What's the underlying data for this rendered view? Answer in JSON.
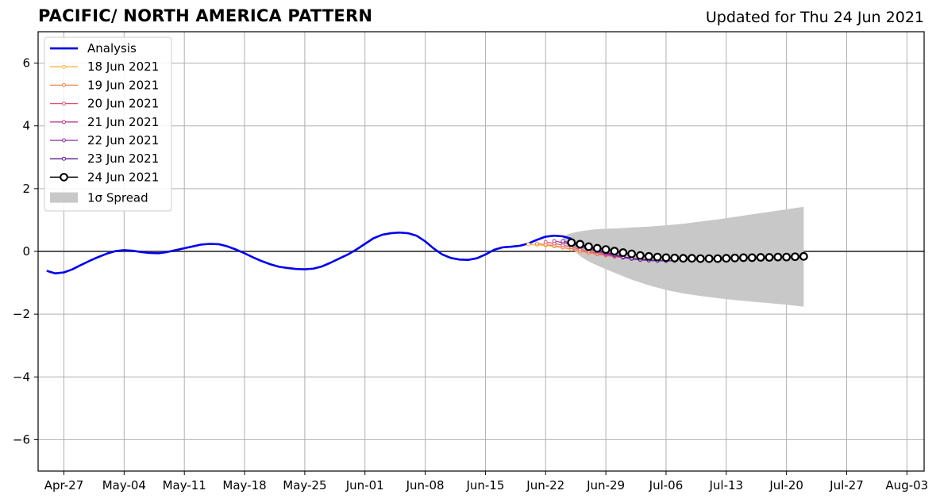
{
  "header": {
    "title": "PACIFIC/ NORTH AMERICA PATTERN",
    "updated": "Updated for Thu 24 Jun 2021"
  },
  "chart_data": {
    "type": "line",
    "title": "PACIFIC/ NORTH AMERICA PATTERN",
    "subtitle": "Updated for Thu 24 Jun 2021",
    "xlabel": "",
    "ylabel": "",
    "xlim": [
      "2021-04-24",
      "2021-08-05"
    ],
    "ylim": [
      -7,
      7
    ],
    "grid": true,
    "legend_position": "top-left",
    "x_tick_labels": [
      "Apr-27",
      "May-04",
      "May-11",
      "May-18",
      "May-25",
      "Jun-01",
      "Jun-08",
      "Jun-15",
      "Jun-22",
      "Jun-29",
      "Jul-06",
      "Jul-13",
      "Jul-20",
      "Jul-27",
      "Aug-03"
    ],
    "x_tick_dates": [
      "2021-04-27",
      "2021-05-04",
      "2021-05-11",
      "2021-05-18",
      "2021-05-25",
      "2021-06-01",
      "2021-06-08",
      "2021-06-15",
      "2021-06-22",
      "2021-06-29",
      "2021-07-06",
      "2021-07-13",
      "2021-07-20",
      "2021-07-27",
      "2021-08-03"
    ],
    "y_ticks": [
      -6,
      -4,
      -2,
      0,
      2,
      4,
      6
    ],
    "y_tick_labels": [
      "−6",
      "−4",
      "−2",
      "0",
      "2",
      "4",
      "6"
    ],
    "series": [
      {
        "name": "Analysis",
        "color": "#0000ee",
        "style": "analysis",
        "points": [
          [
            "2021-04-25",
            -0.62
          ],
          [
            "2021-04-26",
            -0.7
          ],
          [
            "2021-04-27",
            -0.67
          ],
          [
            "2021-04-28",
            -0.57
          ],
          [
            "2021-04-29",
            -0.43
          ],
          [
            "2021-04-30",
            -0.3
          ],
          [
            "2021-05-01",
            -0.18
          ],
          [
            "2021-05-02",
            -0.07
          ],
          [
            "2021-05-03",
            0.01
          ],
          [
            "2021-05-04",
            0.04
          ],
          [
            "2021-05-05",
            0.02
          ],
          [
            "2021-05-06",
            -0.02
          ],
          [
            "2021-05-07",
            -0.05
          ],
          [
            "2021-05-08",
            -0.06
          ],
          [
            "2021-05-09",
            -0.02
          ],
          [
            "2021-05-10",
            0.04
          ],
          [
            "2021-05-11",
            0.1
          ],
          [
            "2021-05-12",
            0.16
          ],
          [
            "2021-05-13",
            0.22
          ],
          [
            "2021-05-14",
            0.24
          ],
          [
            "2021-05-15",
            0.23
          ],
          [
            "2021-05-16",
            0.16
          ],
          [
            "2021-05-17",
            0.06
          ],
          [
            "2021-05-18",
            -0.06
          ],
          [
            "2021-05-19",
            -0.19
          ],
          [
            "2021-05-20",
            -0.31
          ],
          [
            "2021-05-21",
            -0.41
          ],
          [
            "2021-05-22",
            -0.49
          ],
          [
            "2021-05-23",
            -0.53
          ],
          [
            "2021-05-24",
            -0.56
          ],
          [
            "2021-05-25",
            -0.57
          ],
          [
            "2021-05-26",
            -0.55
          ],
          [
            "2021-05-27",
            -0.48
          ],
          [
            "2021-05-28",
            -0.36
          ],
          [
            "2021-05-29",
            -0.23
          ],
          [
            "2021-05-30",
            -0.1
          ],
          [
            "2021-05-31",
            0.06
          ],
          [
            "2021-06-01",
            0.24
          ],
          [
            "2021-06-02",
            0.42
          ],
          [
            "2021-06-03",
            0.53
          ],
          [
            "2021-06-04",
            0.58
          ],
          [
            "2021-06-05",
            0.6
          ],
          [
            "2021-06-06",
            0.58
          ],
          [
            "2021-06-07",
            0.5
          ],
          [
            "2021-06-08",
            0.32
          ],
          [
            "2021-06-09",
            0.09
          ],
          [
            "2021-06-10",
            -0.1
          ],
          [
            "2021-06-11",
            -0.21
          ],
          [
            "2021-06-12",
            -0.26
          ],
          [
            "2021-06-13",
            -0.27
          ],
          [
            "2021-06-14",
            -0.22
          ],
          [
            "2021-06-15",
            -0.1
          ],
          [
            "2021-06-16",
            0.05
          ],
          [
            "2021-06-17",
            0.13
          ],
          [
            "2021-06-18",
            0.15
          ],
          [
            "2021-06-19",
            0.18
          ],
          [
            "2021-06-20",
            0.25
          ],
          [
            "2021-06-21",
            0.37
          ],
          [
            "2021-06-22",
            0.47
          ],
          [
            "2021-06-23",
            0.5
          ],
          [
            "2021-06-24",
            0.48
          ],
          [
            "2021-06-25",
            0.4
          ]
        ]
      },
      {
        "name": "18 Jun 2021",
        "color": "#fbb33a",
        "style": "forecast",
        "points": [
          [
            "2021-06-20",
            0.22
          ],
          [
            "2021-06-21",
            0.21
          ],
          [
            "2021-06-22",
            0.19
          ],
          [
            "2021-06-23",
            0.16
          ],
          [
            "2021-06-24",
            0.12
          ],
          [
            "2021-06-25",
            0.06
          ],
          [
            "2021-06-26",
            0.0
          ],
          [
            "2021-06-27",
            -0.05
          ],
          [
            "2021-06-28",
            -0.09
          ],
          [
            "2021-06-29",
            -0.12
          ],
          [
            "2021-06-30",
            -0.16
          ],
          [
            "2021-07-01",
            -0.19
          ],
          [
            "2021-07-02",
            -0.21
          ]
        ]
      },
      {
        "name": "19 Jun 2021",
        "color": "#f37e4a",
        "style": "forecast",
        "points": [
          [
            "2021-06-21",
            0.25
          ],
          [
            "2021-06-22",
            0.22
          ],
          [
            "2021-06-23",
            0.18
          ],
          [
            "2021-06-24",
            0.13
          ],
          [
            "2021-06-25",
            0.08
          ],
          [
            "2021-06-26",
            0.02
          ],
          [
            "2021-06-27",
            -0.04
          ],
          [
            "2021-06-28",
            -0.09
          ],
          [
            "2021-06-29",
            -0.13
          ],
          [
            "2021-06-30",
            -0.17
          ],
          [
            "2021-07-01",
            -0.2
          ],
          [
            "2021-07-02",
            -0.22
          ],
          [
            "2021-07-03",
            -0.24
          ]
        ]
      },
      {
        "name": "20 Jun 2021",
        "color": "#de5470",
        "style": "forecast",
        "points": [
          [
            "2021-06-22",
            0.3
          ],
          [
            "2021-06-23",
            0.25
          ],
          [
            "2021-06-24",
            0.2
          ],
          [
            "2021-06-25",
            0.14
          ],
          [
            "2021-06-26",
            0.07
          ],
          [
            "2021-06-27",
            0.0
          ],
          [
            "2021-06-28",
            -0.06
          ],
          [
            "2021-06-29",
            -0.11
          ],
          [
            "2021-06-30",
            -0.16
          ],
          [
            "2021-07-01",
            -0.2
          ],
          [
            "2021-07-02",
            -0.23
          ],
          [
            "2021-07-03",
            -0.25
          ],
          [
            "2021-07-04",
            -0.27
          ]
        ]
      },
      {
        "name": "21 Jun 2021",
        "color": "#b43e8f",
        "style": "forecast",
        "points": [
          [
            "2021-06-23",
            0.33
          ],
          [
            "2021-06-24",
            0.28
          ],
          [
            "2021-06-25",
            0.21
          ],
          [
            "2021-06-26",
            0.14
          ],
          [
            "2021-06-27",
            0.06
          ],
          [
            "2021-06-28",
            -0.01
          ],
          [
            "2021-06-29",
            -0.08
          ],
          [
            "2021-06-30",
            -0.14
          ],
          [
            "2021-07-01",
            -0.19
          ],
          [
            "2021-07-02",
            -0.23
          ],
          [
            "2021-07-03",
            -0.26
          ],
          [
            "2021-07-04",
            -0.28
          ],
          [
            "2021-07-05",
            -0.29
          ]
        ]
      },
      {
        "name": "22 Jun 2021",
        "color": "#8a2aa4",
        "style": "forecast",
        "points": [
          [
            "2021-06-24",
            0.33
          ],
          [
            "2021-06-25",
            0.26
          ],
          [
            "2021-06-26",
            0.18
          ],
          [
            "2021-06-27",
            0.1
          ],
          [
            "2021-06-28",
            0.02
          ],
          [
            "2021-06-29",
            -0.06
          ],
          [
            "2021-06-30",
            -0.13
          ],
          [
            "2021-07-01",
            -0.19
          ],
          [
            "2021-07-02",
            -0.24
          ],
          [
            "2021-07-03",
            -0.27
          ],
          [
            "2021-07-04",
            -0.29
          ],
          [
            "2021-07-05",
            -0.3
          ],
          [
            "2021-07-06",
            -0.3
          ]
        ]
      },
      {
        "name": "23 Jun 2021",
        "color": "#5a1a96",
        "style": "forecast",
        "points": [
          [
            "2021-06-25",
            0.3
          ],
          [
            "2021-06-26",
            0.22
          ],
          [
            "2021-06-27",
            0.13
          ],
          [
            "2021-06-28",
            0.05
          ],
          [
            "2021-06-29",
            -0.03
          ],
          [
            "2021-06-30",
            -0.1
          ],
          [
            "2021-07-01",
            -0.17
          ],
          [
            "2021-07-02",
            -0.22
          ],
          [
            "2021-07-03",
            -0.26
          ],
          [
            "2021-07-04",
            -0.28
          ],
          [
            "2021-07-05",
            -0.3
          ],
          [
            "2021-07-06",
            -0.3
          ],
          [
            "2021-07-07",
            -0.3
          ]
        ]
      },
      {
        "name": "24 Jun 2021",
        "color": "#000000",
        "style": "latest",
        "points": [
          [
            "2021-06-25",
            0.28
          ],
          [
            "2021-06-26",
            0.23
          ],
          [
            "2021-06-27",
            0.15
          ],
          [
            "2021-06-28",
            0.1
          ],
          [
            "2021-06-29",
            0.06
          ],
          [
            "2021-06-30",
            0.01
          ],
          [
            "2021-07-01",
            -0.04
          ],
          [
            "2021-07-02",
            -0.08
          ],
          [
            "2021-07-03",
            -0.13
          ],
          [
            "2021-07-04",
            -0.16
          ],
          [
            "2021-07-05",
            -0.18
          ],
          [
            "2021-07-06",
            -0.2
          ],
          [
            "2021-07-07",
            -0.21
          ],
          [
            "2021-07-08",
            -0.22
          ],
          [
            "2021-07-09",
            -0.22
          ],
          [
            "2021-07-10",
            -0.23
          ],
          [
            "2021-07-11",
            -0.23
          ],
          [
            "2021-07-12",
            -0.23
          ],
          [
            "2021-07-13",
            -0.22
          ],
          [
            "2021-07-14",
            -0.21
          ],
          [
            "2021-07-15",
            -0.2
          ],
          [
            "2021-07-16",
            -0.2
          ],
          [
            "2021-07-17",
            -0.19
          ],
          [
            "2021-07-18",
            -0.19
          ],
          [
            "2021-07-19",
            -0.18
          ],
          [
            "2021-07-20",
            -0.18
          ],
          [
            "2021-07-21",
            -0.17
          ],
          [
            "2021-07-22",
            -0.16
          ]
        ]
      }
    ],
    "spread": {
      "name": "1σ Spread",
      "color": "#c8c8c8",
      "upper": [
        [
          "2021-06-24",
          0.48
        ],
        [
          "2021-06-25",
          0.58
        ],
        [
          "2021-06-26",
          0.64
        ],
        [
          "2021-06-27",
          0.68
        ],
        [
          "2021-06-28",
          0.71
        ],
        [
          "2021-06-30",
          0.73
        ],
        [
          "2021-07-02",
          0.76
        ],
        [
          "2021-07-04",
          0.79
        ],
        [
          "2021-07-06",
          0.83
        ],
        [
          "2021-07-08",
          0.88
        ],
        [
          "2021-07-10",
          0.95
        ],
        [
          "2021-07-12",
          1.02
        ],
        [
          "2021-07-14",
          1.1
        ],
        [
          "2021-07-16",
          1.18
        ],
        [
          "2021-07-18",
          1.26
        ],
        [
          "2021-07-20",
          1.34
        ],
        [
          "2021-07-22",
          1.42
        ]
      ],
      "lower": [
        [
          "2021-06-24",
          0.3
        ],
        [
          "2021-06-25",
          0.1
        ],
        [
          "2021-06-26",
          -0.15
        ],
        [
          "2021-06-27",
          -0.32
        ],
        [
          "2021-06-28",
          -0.45
        ],
        [
          "2021-06-30",
          -0.68
        ],
        [
          "2021-07-02",
          -0.9
        ],
        [
          "2021-07-04",
          -1.08
        ],
        [
          "2021-07-06",
          -1.23
        ],
        [
          "2021-07-08",
          -1.34
        ],
        [
          "2021-07-10",
          -1.42
        ],
        [
          "2021-07-12",
          -1.49
        ],
        [
          "2021-07-14",
          -1.55
        ],
        [
          "2021-07-16",
          -1.6
        ],
        [
          "2021-07-18",
          -1.65
        ],
        [
          "2021-07-20",
          -1.7
        ],
        [
          "2021-07-22",
          -1.76
        ]
      ]
    }
  }
}
